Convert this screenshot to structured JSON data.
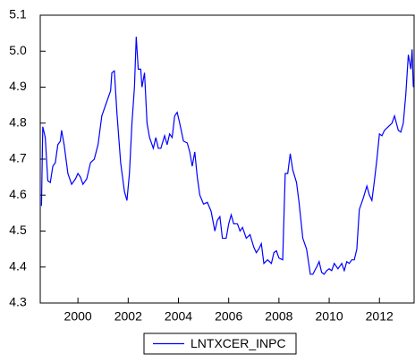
{
  "chart_data": {
    "type": "line",
    "x": [
      1998.55,
      1998.6,
      1998.7,
      1998.8,
      1998.9,
      1999.0,
      1999.1,
      1999.2,
      1999.3,
      1999.35,
      1999.45,
      1999.6,
      1999.75,
      1999.9,
      2000.0,
      2000.1,
      2000.2,
      2000.35,
      2000.5,
      2000.65,
      2000.8,
      2000.95,
      2001.1,
      2001.3,
      2001.35,
      2001.45,
      2001.55,
      2001.7,
      2001.85,
      2001.95,
      2002.05,
      2002.15,
      2002.25,
      2002.32,
      2002.4,
      2002.5,
      2002.55,
      2002.65,
      2002.75,
      2002.85,
      2003.0,
      2003.1,
      2003.2,
      2003.3,
      2003.45,
      2003.55,
      2003.65,
      2003.75,
      2003.85,
      2003.95,
      2004.05,
      2004.2,
      2004.35,
      2004.45,
      2004.55,
      2004.65,
      2004.75,
      2004.85,
      2005.0,
      2005.15,
      2005.3,
      2005.45,
      2005.55,
      2005.65,
      2005.75,
      2005.9,
      2006.0,
      2006.1,
      2006.2,
      2006.35,
      2006.45,
      2006.55,
      2006.7,
      2006.85,
      2007.0,
      2007.1,
      2007.2,
      2007.3,
      2007.4,
      2007.55,
      2007.7,
      2007.8,
      2007.9,
      2008.0,
      2008.15,
      2008.25,
      2008.35,
      2008.45,
      2008.55,
      2008.7,
      2008.8,
      2008.95,
      2009.1,
      2009.25,
      2009.35,
      2009.5,
      2009.6,
      2009.7,
      2009.8,
      2009.9,
      2010.0,
      2010.1,
      2010.2,
      2010.35,
      2010.5,
      2010.6,
      2010.7,
      2010.8,
      2010.9,
      2011.0,
      2011.1,
      2011.2,
      2011.35,
      2011.5,
      2011.6,
      2011.7,
      2011.8,
      2011.9,
      2012.0,
      2012.1,
      2012.2,
      2012.35,
      2012.5,
      2012.6,
      2012.75,
      2012.85,
      2012.95,
      2013.05,
      2013.15,
      2013.25,
      2013.3,
      2013.35
    ],
    "series": [
      {
        "name": "LNTXCER_INPC",
        "color": "#0000ff",
        "values": [
          4.57,
          4.79,
          4.76,
          4.64,
          4.635,
          4.68,
          4.69,
          4.74,
          4.75,
          4.78,
          4.74,
          4.66,
          4.63,
          4.645,
          4.66,
          4.65,
          4.63,
          4.645,
          4.69,
          4.7,
          4.74,
          4.82,
          4.85,
          4.89,
          4.94,
          4.945,
          4.83,
          4.69,
          4.61,
          4.585,
          4.66,
          4.8,
          4.9,
          5.04,
          4.95,
          4.95,
          4.9,
          4.94,
          4.8,
          4.76,
          4.73,
          4.76,
          4.73,
          4.73,
          4.765,
          4.74,
          4.77,
          4.76,
          4.82,
          4.83,
          4.8,
          4.75,
          4.745,
          4.72,
          4.68,
          4.72,
          4.65,
          4.6,
          4.575,
          4.58,
          4.555,
          4.5,
          4.53,
          4.54,
          4.48,
          4.48,
          4.52,
          4.545,
          4.52,
          4.52,
          4.5,
          4.51,
          4.48,
          4.49,
          4.455,
          4.44,
          4.45,
          4.465,
          4.41,
          4.42,
          4.41,
          4.44,
          4.445,
          4.425,
          4.42,
          4.66,
          4.66,
          4.715,
          4.67,
          4.635,
          4.58,
          4.48,
          4.45,
          4.38,
          4.38,
          4.4,
          4.415,
          4.385,
          4.38,
          4.39,
          4.395,
          4.39,
          4.41,
          4.395,
          4.41,
          4.39,
          4.415,
          4.41,
          4.42,
          4.42,
          4.45,
          4.56,
          4.59,
          4.625,
          4.6,
          4.585,
          4.64,
          4.7,
          4.77,
          4.765,
          4.78,
          4.79,
          4.8,
          4.82,
          4.78,
          4.775,
          4.8,
          4.88,
          4.99,
          4.95,
          5.005,
          4.9
        ]
      }
    ],
    "xlim": [
      1998.5,
      2013.38
    ],
    "xticks": [
      2000,
      2002,
      2004,
      2006,
      2008,
      2010,
      2012
    ],
    "ylim": [
      4.3,
      5.1
    ],
    "yticks": [
      4.3,
      4.4,
      4.5,
      4.6,
      4.7,
      4.8,
      4.9,
      {
        "value": 5,
        "label": "5.0"
      },
      5.1
    ],
    "legend": "bottom"
  }
}
